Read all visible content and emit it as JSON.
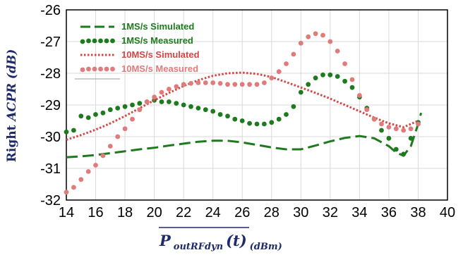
{
  "chart_data": {
    "type": "line",
    "title": "",
    "ylabel_prefix": "Right",
    "ylabel_italic": "ACPR",
    "ylabel_unit": "(dB)",
    "xlabel_main": "P",
    "xlabel_sub": "outRFdyn",
    "xlabel_arg": "(t)",
    "xlabel_unit": "(dBm)",
    "xlim": [
      14,
      40
    ],
    "ylim": [
      -32,
      -26
    ],
    "xticks": [
      "14",
      "16",
      "18",
      "20",
      "22",
      "24",
      "26",
      "28",
      "30",
      "32",
      "34",
      "36",
      "38",
      "40"
    ],
    "yticks": [
      "-26",
      "-27",
      "-28",
      "-29",
      "-30",
      "-31",
      "-32"
    ],
    "grid": true,
    "legend_position": "top-left",
    "series": [
      {
        "name": "1MS/s Simulated",
        "style": "dashed",
        "color": "#1e7a1e",
        "x": [
          14,
          15,
          16,
          17,
          18,
          19,
          20,
          21,
          22,
          23,
          24,
          25,
          26,
          27,
          28,
          29,
          30,
          31,
          32,
          33,
          34,
          35,
          36,
          36.5,
          37,
          37.5,
          38,
          38.2
        ],
        "y": [
          -30.65,
          -30.62,
          -30.58,
          -30.52,
          -30.46,
          -30.4,
          -30.35,
          -30.28,
          -30.22,
          -30.16,
          -30.13,
          -30.13,
          -30.18,
          -30.26,
          -30.34,
          -30.4,
          -30.4,
          -30.28,
          -30.15,
          -30.04,
          -29.98,
          -30.05,
          -30.3,
          -30.5,
          -30.6,
          -30.3,
          -29.6,
          -29.25
        ]
      },
      {
        "name": "1MS/s Measured",
        "style": "dotted",
        "color": "#1e7a1e",
        "x": [
          14,
          14.5,
          15,
          15.5,
          16,
          16.5,
          17,
          17.5,
          18,
          18.5,
          19,
          19.5,
          20,
          20.5,
          21,
          21.5,
          22,
          22.5,
          23,
          23.5,
          24,
          24.5,
          25,
          25.5,
          26,
          26.5,
          27,
          27.5,
          28,
          28.5,
          29,
          29.5,
          30,
          30.5,
          31,
          31.5,
          32,
          32.5,
          33,
          33.5,
          34,
          34.5,
          35,
          35.5,
          36,
          36.5,
          37,
          37.5,
          38
        ],
        "y": [
          -29.85,
          -29.8,
          -29.35,
          -29.4,
          -29.3,
          -29.25,
          -29.15,
          -29.1,
          -29.05,
          -29.0,
          -28.95,
          -28.9,
          -28.85,
          -28.9,
          -28.9,
          -28.95,
          -29.0,
          -29.05,
          -29.1,
          -29.15,
          -29.2,
          -29.3,
          -29.35,
          -29.45,
          -29.5,
          -29.58,
          -29.6,
          -29.6,
          -29.55,
          -29.45,
          -29.3,
          -29.05,
          -28.6,
          -28.35,
          -28.15,
          -28.05,
          -28.05,
          -28.1,
          -28.25,
          -28.45,
          -28.75,
          -29.1,
          -29.45,
          -29.8,
          -30.05,
          -30.4,
          -30.55,
          -30.05,
          -29.55
        ]
      },
      {
        "name": "10MS/s Simulated",
        "style": "dotted-fine",
        "color": "#d64545",
        "x": [
          14,
          15,
          16,
          17,
          18,
          19,
          20,
          21,
          22,
          23,
          24,
          25,
          26,
          27,
          28,
          29,
          30,
          31,
          32,
          33,
          34,
          35,
          36,
          37,
          37.5,
          38
        ],
        "y": [
          -30.1,
          -29.95,
          -29.78,
          -29.58,
          -29.35,
          -29.1,
          -28.85,
          -28.62,
          -28.4,
          -28.22,
          -28.08,
          -28.0,
          -27.98,
          -28.02,
          -28.12,
          -28.28,
          -28.45,
          -28.62,
          -28.8,
          -29.0,
          -29.2,
          -29.4,
          -29.58,
          -29.7,
          -29.6,
          -29.5
        ]
      },
      {
        "name": "10MS/s Measured",
        "style": "dotted",
        "color": "#e07b7b",
        "x": [
          14,
          14.5,
          15,
          15.5,
          16,
          16.5,
          17,
          17.5,
          18,
          18.5,
          19,
          19.5,
          20,
          20.5,
          21,
          21.5,
          22,
          22.5,
          23,
          23.5,
          24,
          24.5,
          25,
          25.5,
          26,
          26.5,
          27,
          27.5,
          28,
          28.5,
          29,
          29.5,
          30,
          30.5,
          31,
          31.5,
          32,
          32.5,
          33,
          33.5,
          34,
          34.5,
          35,
          35.5,
          36,
          36.5,
          37,
          37.5,
          38
        ],
        "y": [
          -31.75,
          -31.6,
          -31.35,
          -31.1,
          -30.9,
          -30.6,
          -30.3,
          -30.0,
          -29.75,
          -29.45,
          -29.15,
          -28.9,
          -28.75,
          -28.6,
          -28.5,
          -28.42,
          -28.35,
          -28.32,
          -28.3,
          -28.3,
          -28.3,
          -28.32,
          -28.35,
          -28.35,
          -28.35,
          -28.35,
          -28.35,
          -28.3,
          -28.15,
          -27.95,
          -27.7,
          -27.4,
          -27.05,
          -26.85,
          -26.75,
          -26.8,
          -27.0,
          -27.3,
          -27.7,
          -28.2,
          -28.7,
          -29.15,
          -29.45,
          -29.6,
          -29.7,
          -29.75,
          -29.8,
          -29.75,
          -29.6
        ]
      }
    ]
  }
}
